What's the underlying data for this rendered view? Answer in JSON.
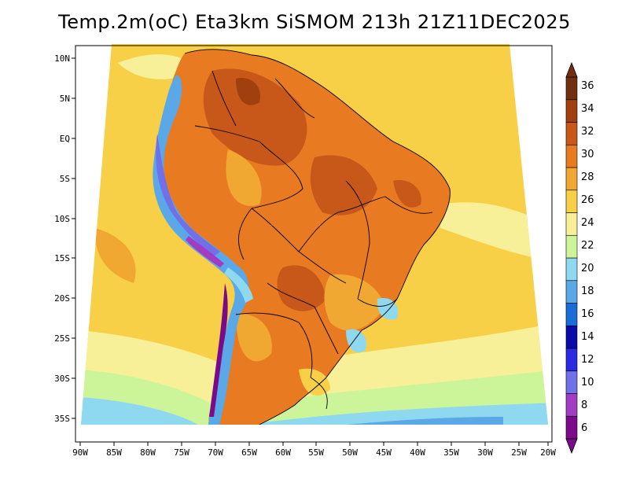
{
  "title": "Temp.2m(oC) Eta3km SiSMOM 213h 21Z11DEC2025",
  "map": {
    "lon_range": [
      -90,
      -20
    ],
    "lat_range": [
      -38,
      12
    ],
    "lon_ticks": [
      "90W",
      "85W",
      "80W",
      "75W",
      "70W",
      "65W",
      "60W",
      "55W",
      "50W",
      "45W",
      "40W",
      "35W",
      "30W",
      "25W",
      "20W"
    ],
    "lat_ticks": [
      "10N",
      "5N",
      "EQ",
      "5S",
      "10S",
      "15S",
      "20S",
      "25S",
      "30S",
      "35S"
    ]
  },
  "colorbar": {
    "labels": [
      "6",
      "8",
      "10",
      "12",
      "14",
      "16",
      "18",
      "20",
      "22",
      "24",
      "26",
      "28",
      "30",
      "32",
      "34",
      "36"
    ],
    "colors": [
      "#7a0a8a",
      "#a23cc2",
      "#7070e8",
      "#2a2ae0",
      "#0a0aa8",
      "#1a6cd8",
      "#5aa8e8",
      "#8ed8f0",
      "#ccf59a",
      "#f8f098",
      "#f8d048",
      "#f0a832",
      "#e87a22",
      "#c8581a",
      "#a0400e",
      "#703010"
    ]
  }
}
